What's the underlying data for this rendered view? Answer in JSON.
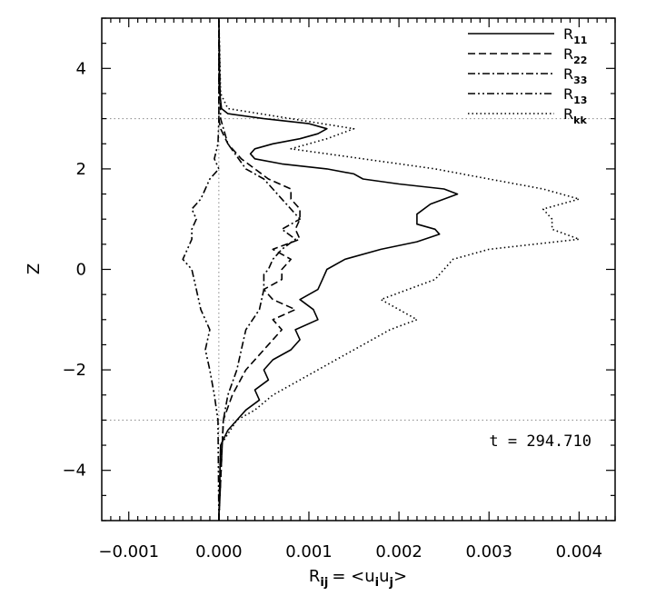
{
  "chart_data": {
    "type": "line",
    "orientation": "vertical-profile",
    "xlabel": "R",
    "xlabel_sub": "ij",
    "xlabel_eq": "= <u",
    "xlabel_sub_i": "i",
    "xlabel_u": "u",
    "xlabel_sub_j": "j",
    "xlabel_close": ">",
    "ylabel": "Z",
    "xlim": [
      -0.0013,
      0.0044
    ],
    "ylim": [
      -5,
      5
    ],
    "xticks": [
      -0.001,
      0.0,
      0.001,
      0.002,
      0.003,
      0.004
    ],
    "xtick_labels": [
      "−0.001",
      "0.000",
      "0.001",
      "0.002",
      "0.003",
      "0.004"
    ],
    "yticks": [
      -4,
      -2,
      0,
      2,
      4
    ],
    "ytick_labels": [
      "−4",
      "−2",
      "0",
      "2",
      "4"
    ],
    "hlines": [
      3,
      -3
    ],
    "vline": 0,
    "grid": false,
    "legend_placement": "top-right",
    "annotation": "t = 294.710",
    "series": [
      {
        "name": "R11",
        "label_main": "R",
        "label_sub": "11",
        "dash": "solid",
        "z": [
          -5.0,
          -3.5,
          -3.2,
          -3.0,
          -2.8,
          -2.6,
          -2.4,
          -2.2,
          -2.0,
          -1.8,
          -1.6,
          -1.4,
          -1.2,
          -1.0,
          -0.8,
          -0.6,
          -0.4,
          -0.2,
          0.0,
          0.2,
          0.4,
          0.55,
          0.7,
          0.8,
          0.9,
          1.1,
          1.3,
          1.5,
          1.6,
          1.7,
          1.8,
          1.9,
          2.0,
          2.1,
          2.2,
          2.3,
          2.4,
          2.5,
          2.6,
          2.7,
          2.8,
          2.9,
          3.0,
          3.1,
          3.2,
          3.5,
          5.0
        ],
        "value": [
          0.0,
          2e-05,
          0.0001,
          0.0002,
          0.0003,
          0.00045,
          0.0004,
          0.00055,
          0.0005,
          0.0006,
          0.0008,
          0.0009,
          0.00085,
          0.0011,
          0.00105,
          0.0009,
          0.0011,
          0.00115,
          0.0012,
          0.0014,
          0.0018,
          0.0022,
          0.00245,
          0.0024,
          0.0022,
          0.0022,
          0.00235,
          0.00265,
          0.0025,
          0.002,
          0.0016,
          0.0015,
          0.0012,
          0.0007,
          0.0004,
          0.00035,
          0.0004,
          0.0006,
          0.0009,
          0.0011,
          0.0012,
          0.001,
          0.0005,
          0.0001,
          3e-05,
          1e-05,
          0.0
        ]
      },
      {
        "name": "R22",
        "label_main": "R",
        "label_sub": "22",
        "dash": "dashed",
        "z": [
          -5.0,
          -3.0,
          -2.5,
          -2.0,
          -1.6,
          -1.2,
          -1.0,
          -0.8,
          -0.6,
          -0.4,
          -0.2,
          0.0,
          0.2,
          0.4,
          0.6,
          0.8,
          1.0,
          1.2,
          1.4,
          1.6,
          1.8,
          2.0,
          2.2,
          2.5,
          2.8,
          3.0,
          5.0
        ],
        "value": [
          0.0,
          5e-05,
          0.00015,
          0.0003,
          0.0005,
          0.0007,
          0.0006,
          0.00085,
          0.0006,
          0.0005,
          0.0007,
          0.0007,
          0.0008,
          0.0006,
          0.0009,
          0.00085,
          0.0009,
          0.0009,
          0.0008,
          0.0008,
          0.00055,
          0.0004,
          0.00025,
          0.0001,
          2e-05,
          0.0,
          0.0
        ]
      },
      {
        "name": "R33",
        "label_main": "R",
        "label_sub": "33",
        "dash": "dashdot",
        "z": [
          -5.0,
          -3.0,
          -2.5,
          -2.0,
          -1.6,
          -1.2,
          -0.8,
          -0.4,
          -0.1,
          0.0,
          0.2,
          0.4,
          0.6,
          0.8,
          1.0,
          1.2,
          1.4,
          1.6,
          1.8,
          2.0,
          2.5,
          3.0,
          5.0
        ],
        "value": [
          0.0,
          5e-05,
          0.0001,
          0.0002,
          0.00025,
          0.0003,
          0.00045,
          0.0005,
          0.0005,
          0.00055,
          0.0006,
          0.0007,
          0.00085,
          0.0007,
          0.0009,
          0.0008,
          0.0007,
          0.0006,
          0.0005,
          0.0003,
          0.0001,
          2e-05,
          0.0
        ]
      },
      {
        "name": "R13",
        "label_main": "R",
        "label_sub": "13",
        "dash": "dashdotdot",
        "z": [
          -5.0,
          -3.0,
          -2.5,
          -2.0,
          -1.6,
          -1.2,
          -0.8,
          -0.4,
          0.0,
          0.2,
          0.4,
          0.6,
          0.8,
          1.0,
          1.2,
          1.4,
          1.6,
          1.8,
          2.0,
          2.2,
          2.5,
          3.0,
          5.0
        ],
        "value": [
          0.0,
          -1e-05,
          -5e-05,
          -0.0001,
          -0.00015,
          -0.0001,
          -0.0002,
          -0.00025,
          -0.0003,
          -0.0004,
          -0.00035,
          -0.0003,
          -0.0003,
          -0.00025,
          -0.0003,
          -0.0002,
          -0.00015,
          -0.0001,
          0.0,
          -5e-05,
          -1e-05,
          0.0,
          0.0
        ]
      },
      {
        "name": "Rkk",
        "label_main": "R",
        "label_sub": "kk",
        "dash": "dotted",
        "z": [
          -5.0,
          -3.5,
          -3.0,
          -2.8,
          -2.5,
          -2.2,
          -2.0,
          -1.8,
          -1.5,
          -1.2,
          -1.0,
          -0.8,
          -0.6,
          -0.4,
          -0.2,
          0.0,
          0.2,
          0.4,
          0.6,
          0.8,
          1.0,
          1.2,
          1.4,
          1.6,
          1.8,
          2.0,
          2.2,
          2.4,
          2.6,
          2.8,
          3.0,
          3.2,
          3.5,
          5.0
        ],
        "value": [
          0.0,
          2e-05,
          0.0002,
          0.0004,
          0.0006,
          0.0009,
          0.0011,
          0.0013,
          0.0016,
          0.0019,
          0.0022,
          0.002,
          0.0018,
          0.0021,
          0.0024,
          0.0025,
          0.0026,
          0.003,
          0.004,
          0.0037,
          0.0037,
          0.0036,
          0.004,
          0.0036,
          0.003,
          0.0024,
          0.0016,
          0.0008,
          0.0012,
          0.0015,
          0.0008,
          0.0001,
          2e-05,
          0.0
        ]
      }
    ]
  }
}
